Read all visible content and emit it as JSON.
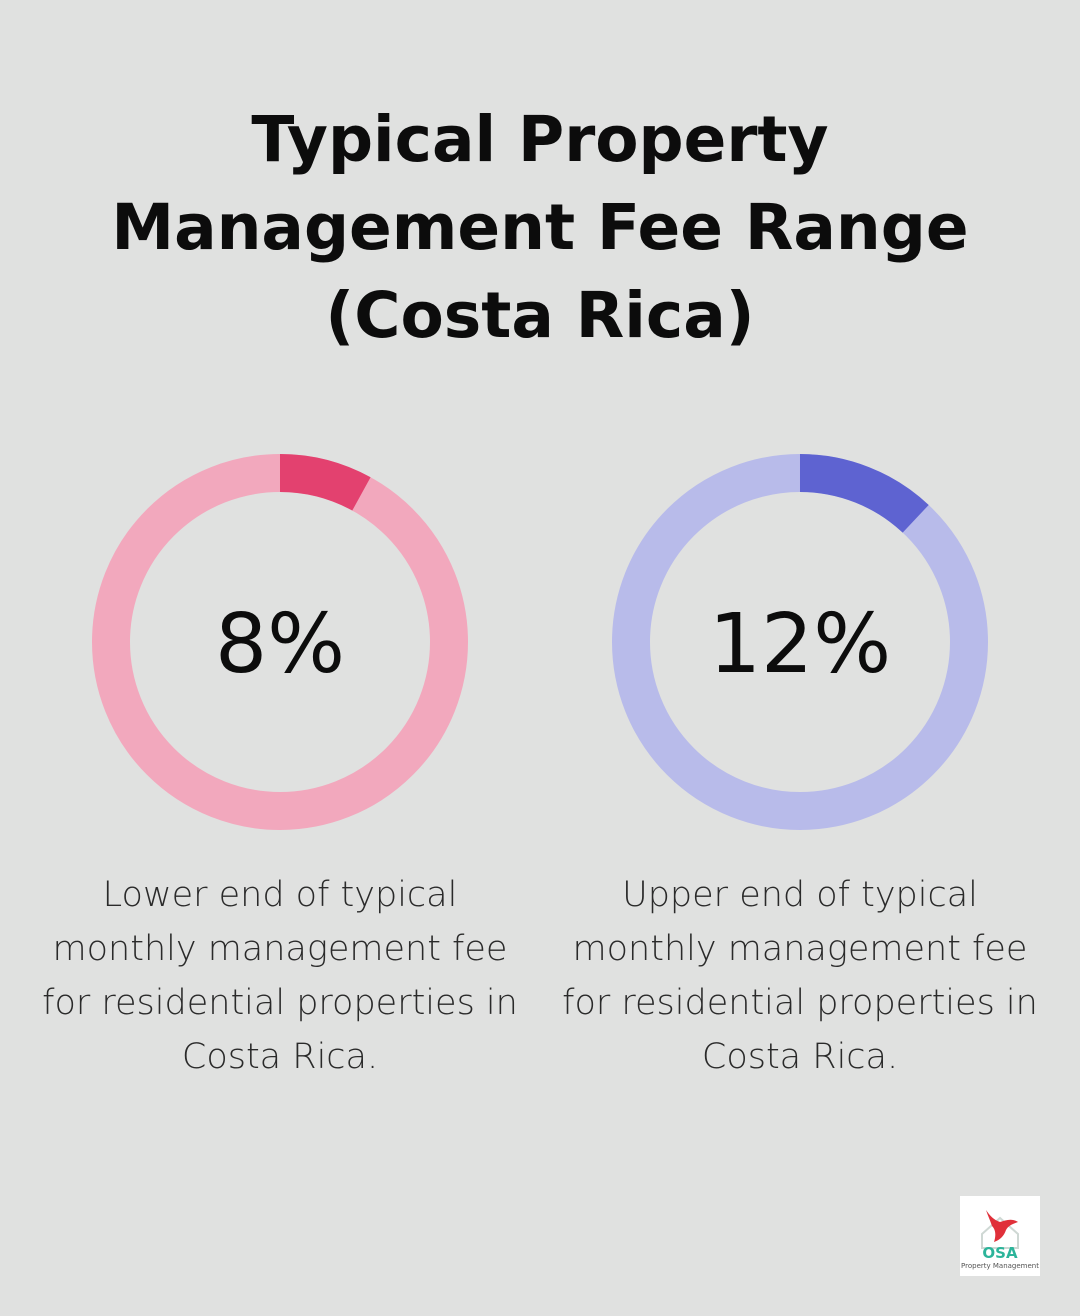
{
  "title": "Typical Property Management Fee Range (Costa Rica)",
  "chart_data": [
    {
      "type": "pie",
      "value": 8,
      "max": 100,
      "label": "8%",
      "caption": "Lower end of typical monthly management fee for residential properties in Costa Rica.",
      "colors": {
        "filled": "#e3416f",
        "track": "#f2a8bd"
      }
    },
    {
      "type": "pie",
      "value": 12,
      "max": 100,
      "label": "12%",
      "caption": "Upper end of typical monthly management fee for residential properties in Costa Rica.",
      "colors": {
        "filled": "#5e63d1",
        "track": "#b8bbea"
      }
    }
  ],
  "logo": {
    "name": "OSA",
    "subtitle": "Property Management",
    "colors": {
      "mark": "#e0303a",
      "text": "#2cb49a",
      "sub": "#555555"
    }
  }
}
